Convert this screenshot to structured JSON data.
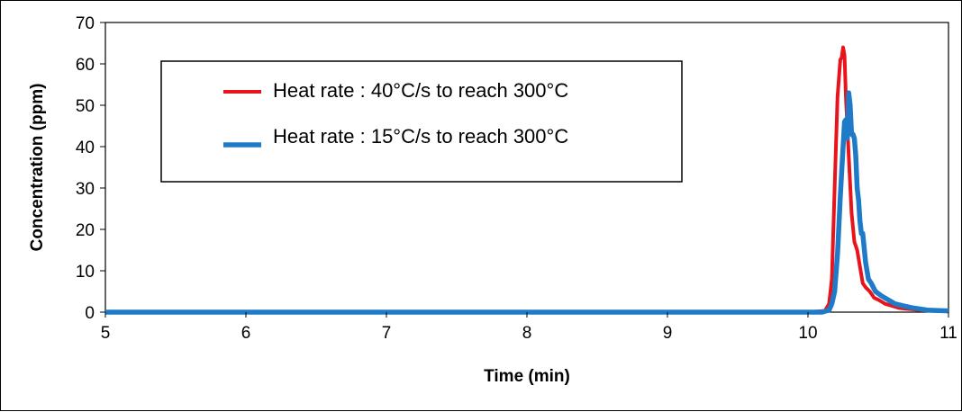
{
  "chart_data": {
    "type": "line",
    "title": "",
    "xlabel": "Time (min)",
    "ylabel": "Concentration (ppm)",
    "xlim": [
      5,
      11
    ],
    "ylim": [
      0,
      70
    ],
    "x_ticks": [
      "5",
      "6",
      "7",
      "8",
      "9",
      "10",
      "11"
    ],
    "y_ticks": [
      "0",
      "10",
      "20",
      "30",
      "40",
      "50",
      "60",
      "70"
    ],
    "grid": false,
    "legend_position": "top-left",
    "series": [
      {
        "name": "Heat rate : 40°C/s to reach 300°C",
        "color": "#e8141c",
        "x": [
          5.0,
          10.0,
          10.12,
          10.15,
          10.17,
          10.19,
          10.21,
          10.23,
          10.24,
          10.25,
          10.26,
          10.27,
          10.28,
          10.29,
          10.3,
          10.31,
          10.33,
          10.35,
          10.37,
          10.39,
          10.41,
          10.44,
          10.47,
          10.5,
          10.55,
          10.6,
          10.65,
          10.7,
          10.8,
          10.9,
          11.0
        ],
        "y": [
          0,
          0,
          0.3,
          2,
          8,
          30,
          52,
          61,
          61.5,
          64,
          62,
          52,
          45,
          38,
          31,
          24,
          17,
          15,
          11,
          7,
          6,
          5,
          3.5,
          3,
          2,
          1.5,
          1,
          0.8,
          0.5,
          0.3,
          0.2
        ]
      },
      {
        "name": "Heat rate : 15°C/s to reach 300°C",
        "color": "#1f7bc8",
        "x": [
          5.0,
          10.1,
          10.15,
          10.17,
          10.19,
          10.21,
          10.23,
          10.25,
          10.26,
          10.27,
          10.28,
          10.29,
          10.3,
          10.31,
          10.32,
          10.33,
          10.34,
          10.35,
          10.36,
          10.37,
          10.38,
          10.39,
          10.41,
          10.43,
          10.45,
          10.48,
          10.52,
          10.57,
          10.62,
          10.68,
          10.75,
          10.85,
          11.0
        ],
        "y": [
          0,
          0,
          0.5,
          2,
          5,
          14,
          28,
          40,
          46,
          46.5,
          42,
          53,
          50,
          43,
          43,
          42,
          38,
          30,
          27,
          22,
          19,
          19,
          12,
          8,
          7,
          5,
          4,
          3,
          2,
          1.5,
          1,
          0.5,
          0.3
        ]
      }
    ]
  }
}
